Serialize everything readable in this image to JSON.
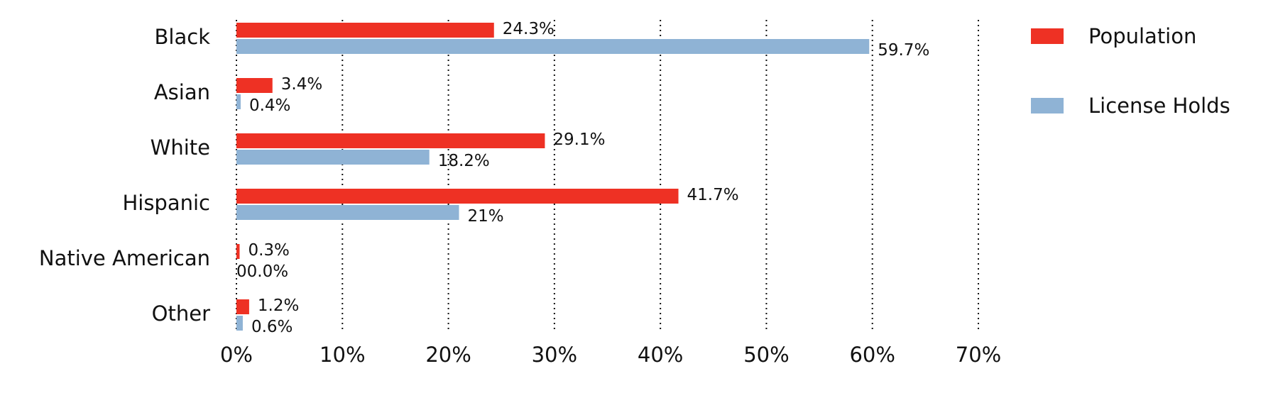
{
  "chart_data": {
    "type": "bar",
    "orientation": "horizontal",
    "categories": [
      "Black",
      "Asian",
      "White",
      "Hispanic",
      "Native American",
      "Other"
    ],
    "series": [
      {
        "name": "Population",
        "color": "#ee3124",
        "values": [
          24.3,
          3.4,
          29.1,
          41.7,
          0.3,
          1.2
        ],
        "value_labels": [
          "24.3%",
          "3.4%",
          "29.1%",
          "41.7%",
          "0.3%",
          "1.2%"
        ]
      },
      {
        "name": "License Holds",
        "color": "#8fb3d5",
        "values": [
          59.7,
          0.4,
          18.2,
          21,
          0.0,
          0.6
        ],
        "value_labels": [
          "59.7%",
          "0.4%",
          "18.2%",
          "21%",
          "00.0%",
          "0.6%"
        ]
      }
    ],
    "xlim": [
      0,
      70
    ],
    "xticks": [
      {
        "value": 0,
        "label": "0%"
      },
      {
        "value": 10,
        "label": "10%"
      },
      {
        "value": 20,
        "label": "20%"
      },
      {
        "value": 30,
        "label": "30%"
      },
      {
        "value": 40,
        "label": "40%"
      },
      {
        "value": 50,
        "label": "50%"
      },
      {
        "value": 60,
        "label": "60%"
      },
      {
        "value": 70,
        "label": "70%"
      }
    ],
    "grid": true,
    "legend_position": "top-right"
  }
}
